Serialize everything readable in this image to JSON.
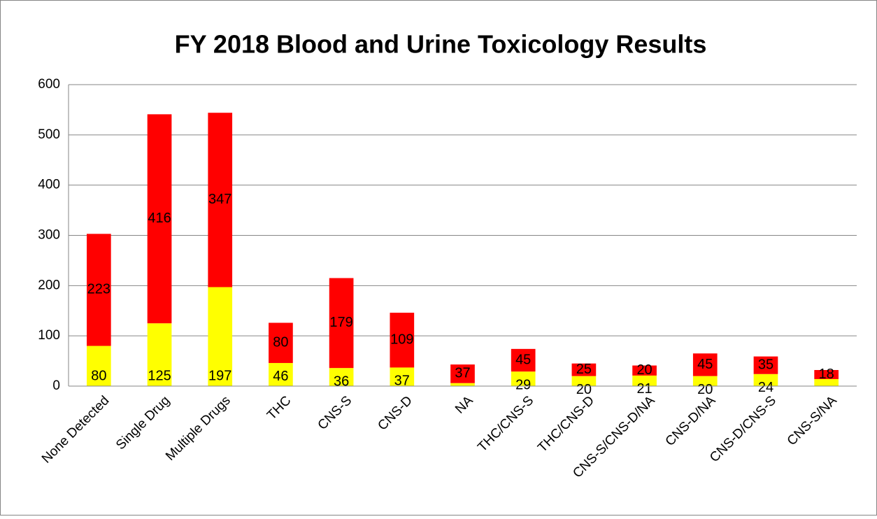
{
  "chart_data": {
    "type": "stacked_bar",
    "title": "FY 2018 Blood and Urine Toxicology Results",
    "categories": [
      "None Detected",
      "Single Drug",
      "Multiple Drugs",
      "THC",
      "CNS-S",
      "CNS-D",
      "NA",
      "THC/CNS-S",
      "THC/CNS-D",
      "CNS-S/CNS-D/NA",
      "CNS-D/NA",
      "CNS-D/CNS-S",
      "CNS-S/NA"
    ],
    "series": [
      {
        "color": "#ffff00",
        "values": [
          80,
          125,
          197,
          46,
          36,
          37,
          6,
          29,
          20,
          21,
          20,
          24,
          14
        ],
        "value_labels": [
          "80",
          "125",
          "197",
          "46",
          "36",
          "37",
          null,
          "29",
          "20",
          "21",
          "20",
          "24",
          null
        ]
      },
      {
        "color": "#ff0000",
        "values": [
          223,
          416,
          347,
          80,
          179,
          109,
          37,
          45,
          25,
          20,
          45,
          35,
          18
        ]
      }
    ],
    "ylim": [
      0,
      600
    ],
    "yticks": [
      0,
      100,
      200,
      300,
      400,
      500,
      600
    ],
    "grid": true
  }
}
